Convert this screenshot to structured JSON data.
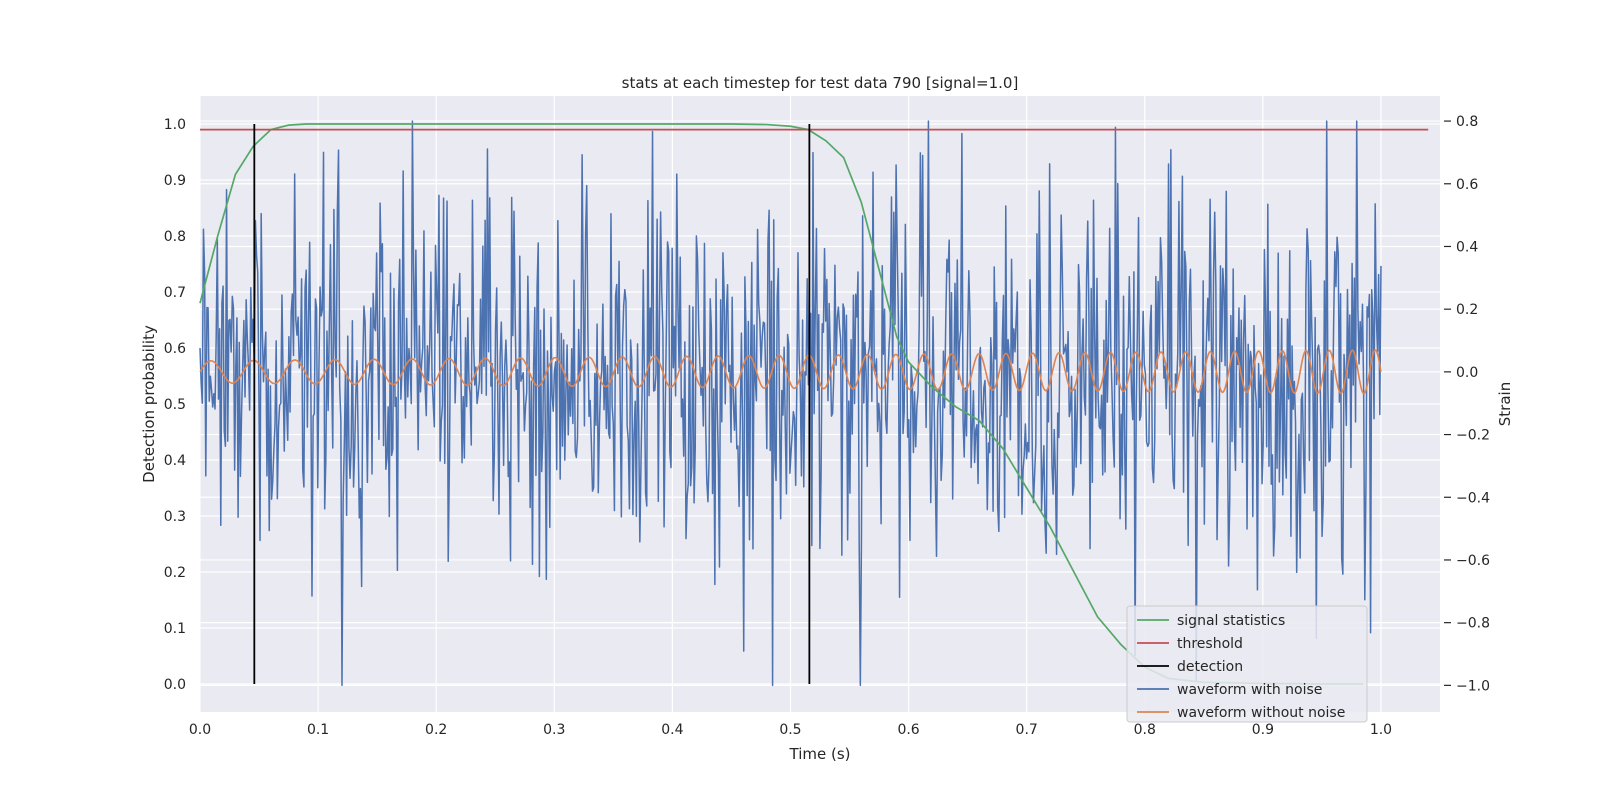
{
  "chart_data": {
    "type": "line",
    "title": "stats at each timestep for test data 790 [signal=1.0]",
    "xlabel": "Time (s)",
    "ylabel": "Detection probability",
    "y2label": "Strain",
    "xlim": [
      0.0,
      1.05
    ],
    "ylim": [
      -0.05,
      1.05
    ],
    "y2lim": [
      -1.085,
      0.88
    ],
    "x_ticks": [
      "0.0",
      "0.1",
      "0.2",
      "0.3",
      "0.4",
      "0.5",
      "0.6",
      "0.7",
      "0.8",
      "0.9",
      "1.0"
    ],
    "y_ticks": [
      "0.0",
      "0.1",
      "0.2",
      "0.3",
      "0.4",
      "0.5",
      "0.6",
      "0.7",
      "0.8",
      "0.9",
      "1.0"
    ],
    "y2_ticks": [
      "−1.0",
      "−0.8",
      "−0.6",
      "−0.4",
      "−0.2",
      "0.0",
      "0.2",
      "0.4",
      "0.6",
      "0.8"
    ],
    "grid": true,
    "legend_position": "lower right",
    "legend": [
      "signal statistics",
      "threshold",
      "detection",
      "waveform with noise",
      "waveform without noise"
    ],
    "colors": {
      "signal_statistics": "#55a868",
      "threshold": "#c44e52",
      "detection": "#000000",
      "waveform_with_noise": "#4c72b0",
      "waveform_without_noise": "#dd8452",
      "plot_background": "#eaeaf2",
      "grid": "#ffffff"
    },
    "signal_statistics": {
      "x": [
        0.0,
        0.015,
        0.03,
        0.045,
        0.06,
        0.075,
        0.09,
        0.15,
        0.3,
        0.45,
        0.48,
        0.5,
        0.515,
        0.53,
        0.545,
        0.56,
        0.575,
        0.59,
        0.6,
        0.62,
        0.64,
        0.66,
        0.68,
        0.7,
        0.72,
        0.74,
        0.76,
        0.78,
        0.8,
        0.82,
        0.85,
        0.9,
        0.95,
        0.985
      ],
      "y": [
        0.68,
        0.8,
        0.91,
        0.96,
        0.99,
        0.998,
        1.0,
        1.0,
        1.0,
        1.0,
        0.999,
        0.996,
        0.99,
        0.97,
        0.94,
        0.86,
        0.74,
        0.62,
        0.575,
        0.53,
        0.495,
        0.47,
        0.42,
        0.35,
        0.28,
        0.2,
        0.12,
        0.07,
        0.03,
        0.01,
        0.003,
        0.001,
        0.0,
        0.0
      ]
    },
    "threshold": {
      "y": 0.99,
      "x_range": [
        0.0,
        1.04
      ]
    },
    "detections": {
      "x": [
        0.046,
        0.516
      ],
      "y_range": [
        0.0,
        1.0
      ]
    },
    "waveform_with_noise": {
      "x_range": [
        0.0,
        1.0
      ],
      "n_points": 1024,
      "noise_std": 0.28,
      "strain_range": [
        -1.0,
        0.8
      ],
      "notable_points": [
        {
          "x": 0.12,
          "y": -1.0
        },
        {
          "x": 0.18,
          "y": 0.8
        },
        {
          "x": 0.485,
          "y": -1.0
        },
        {
          "x": 0.775,
          "y": 0.78
        },
        {
          "x": 0.645,
          "y": 0.76
        },
        {
          "x": 0.105,
          "y": 0.7
        },
        {
          "x": 0.945,
          "y": -0.85
        }
      ]
    },
    "waveform_without_noise": {
      "x_range": [
        0.0,
        1.0
      ],
      "amplitude_start": 0.035,
      "amplitude_end": 0.07,
      "freq_start_hz": 27,
      "freq_end_hz": 52
    }
  }
}
